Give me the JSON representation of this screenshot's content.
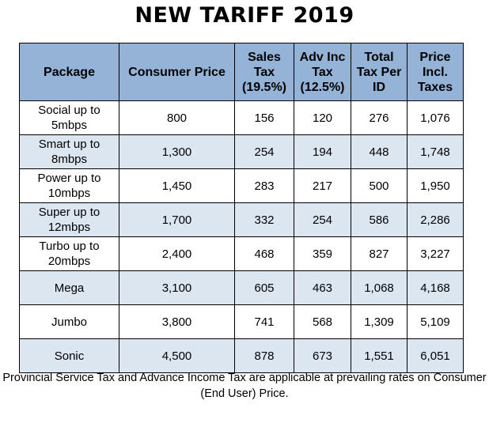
{
  "title": "NEW TARIFF 2019",
  "table": {
    "headers": [
      "Package",
      "Consumer Price",
      "Sales Tax (19.5%)",
      "Adv Inc Tax (12.5%)",
      "Total Tax Per ID",
      "Price Incl. Taxes"
    ],
    "rows": [
      [
        "Social up to 5mbps",
        "800",
        "156",
        "120",
        "276",
        "1,076"
      ],
      [
        "Smart up to 8mbps",
        "1,300",
        "254",
        "194",
        "448",
        "1,748"
      ],
      [
        "Power up to 10mbps",
        "1,450",
        "283",
        "217",
        "500",
        "1,950"
      ],
      [
        "Super up to 12mbps",
        "1,700",
        "332",
        "254",
        "586",
        "2,286"
      ],
      [
        "Turbo up to 20mbps",
        "2,400",
        "468",
        "359",
        "827",
        "3,227"
      ],
      [
        "Mega",
        "3,100",
        "605",
        "463",
        "1,068",
        "4,168"
      ],
      [
        "Jumbo",
        "3,800",
        "741",
        "568",
        "1,309",
        "5,109"
      ],
      [
        "Sonic",
        "4,500",
        "878",
        "673",
        "1,551",
        "6,051"
      ]
    ]
  },
  "footnote": "Provincial Service Tax and Advance Income Tax are applicable at prevailing rates on Consumer (End User) Price."
}
